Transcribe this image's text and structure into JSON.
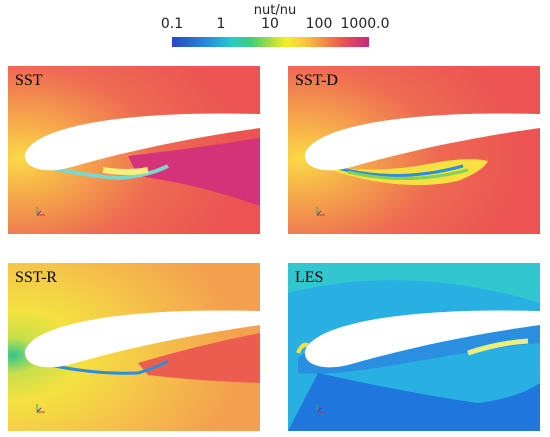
{
  "colorbar": {
    "title": "nut/nu",
    "ticks": [
      "0.1",
      "1",
      "10",
      "100",
      "1000.0"
    ]
  },
  "panels": [
    {
      "label": "SST"
    },
    {
      "label": "SST-D"
    },
    {
      "label": "SST-R"
    },
    {
      "label": "LES"
    }
  ]
}
